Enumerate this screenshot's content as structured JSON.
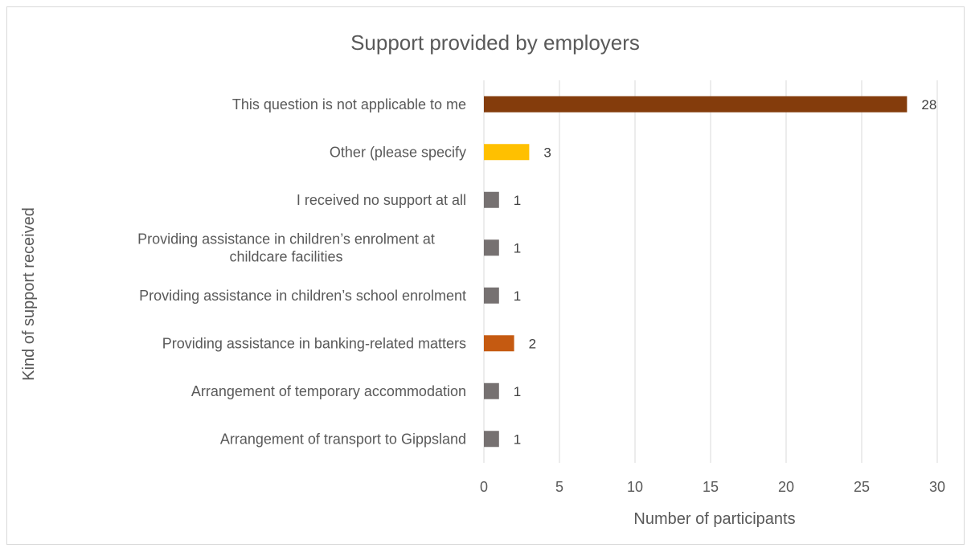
{
  "chart_data": {
    "type": "bar",
    "orientation": "horizontal",
    "title": "Support provided by employers",
    "xlabel": "Number of participants",
    "ylabel": "Kind of support received",
    "xlim": [
      0,
      30
    ],
    "xticks": [
      0,
      5,
      10,
      15,
      20,
      25,
      30
    ],
    "grid": true,
    "legend": "none",
    "categories": [
      [
        "This question is not applicable to me"
      ],
      [
        "Other (please specify"
      ],
      [
        "I received no support at all"
      ],
      [
        "Providing assistance in children’s enrolment at",
        "childcare facilities"
      ],
      [
        "Providing assistance in children’s school enrolment"
      ],
      [
        "Providing assistance in banking-related matters"
      ],
      [
        "Arrangement of temporary accommodation"
      ],
      [
        "Arrangement of transport to Gippsland"
      ]
    ],
    "values": [
      28,
      3,
      1,
      1,
      1,
      2,
      1,
      1
    ],
    "colors": [
      "#843c0c",
      "#ffc000",
      "#767171",
      "#767171",
      "#767171",
      "#c55a11",
      "#767171",
      "#767171"
    ]
  }
}
